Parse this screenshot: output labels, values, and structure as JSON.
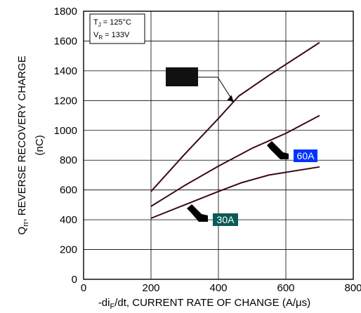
{
  "chart_data": {
    "type": "line",
    "title": "",
    "xlabel": "-di",
    "xlabel_sub": "F",
    "xlabel_rest": "/dt, CURRENT RATE OF CHANGE (A/μs)",
    "ylabel_q": "Q",
    "ylabel_sub": "rr",
    "ylabel_rest": ", REVERSE RECOVERY CHARGE",
    "ylabel_unit": "(nC)",
    "xlim": [
      0,
      800
    ],
    "ylim": [
      0,
      1800
    ],
    "xticks": [
      "0",
      "200",
      "400",
      "600",
      "800"
    ],
    "yticks": [
      "0",
      "200",
      "400",
      "600",
      "800",
      "1000",
      "1200",
      "1400",
      "1600",
      "1800"
    ],
    "grid": true,
    "conditions": [
      {
        "main": "T",
        "sub": "J",
        "rest": " = 125°C"
      },
      {
        "main": "V",
        "sub": "R",
        "rest": " = 133V"
      }
    ],
    "series": [
      {
        "name": "",
        "color": "#111111",
        "x": [
          200,
          300,
          400,
          460,
          550,
          700
        ],
        "y": [
          590,
          840,
          1080,
          1230,
          1370,
          1590
        ]
      },
      {
        "name": "60A",
        "color": "#0033ff",
        "x": [
          200,
          300,
          400,
          500,
          600,
          700
        ],
        "y": [
          490,
          630,
          760,
          880,
          980,
          1100
        ]
      },
      {
        "name": "30A",
        "color": "#0a5a57",
        "x": [
          200,
          300,
          400,
          470,
          550,
          700
        ],
        "y": [
          410,
          500,
          590,
          650,
          700,
          755
        ]
      }
    ]
  }
}
